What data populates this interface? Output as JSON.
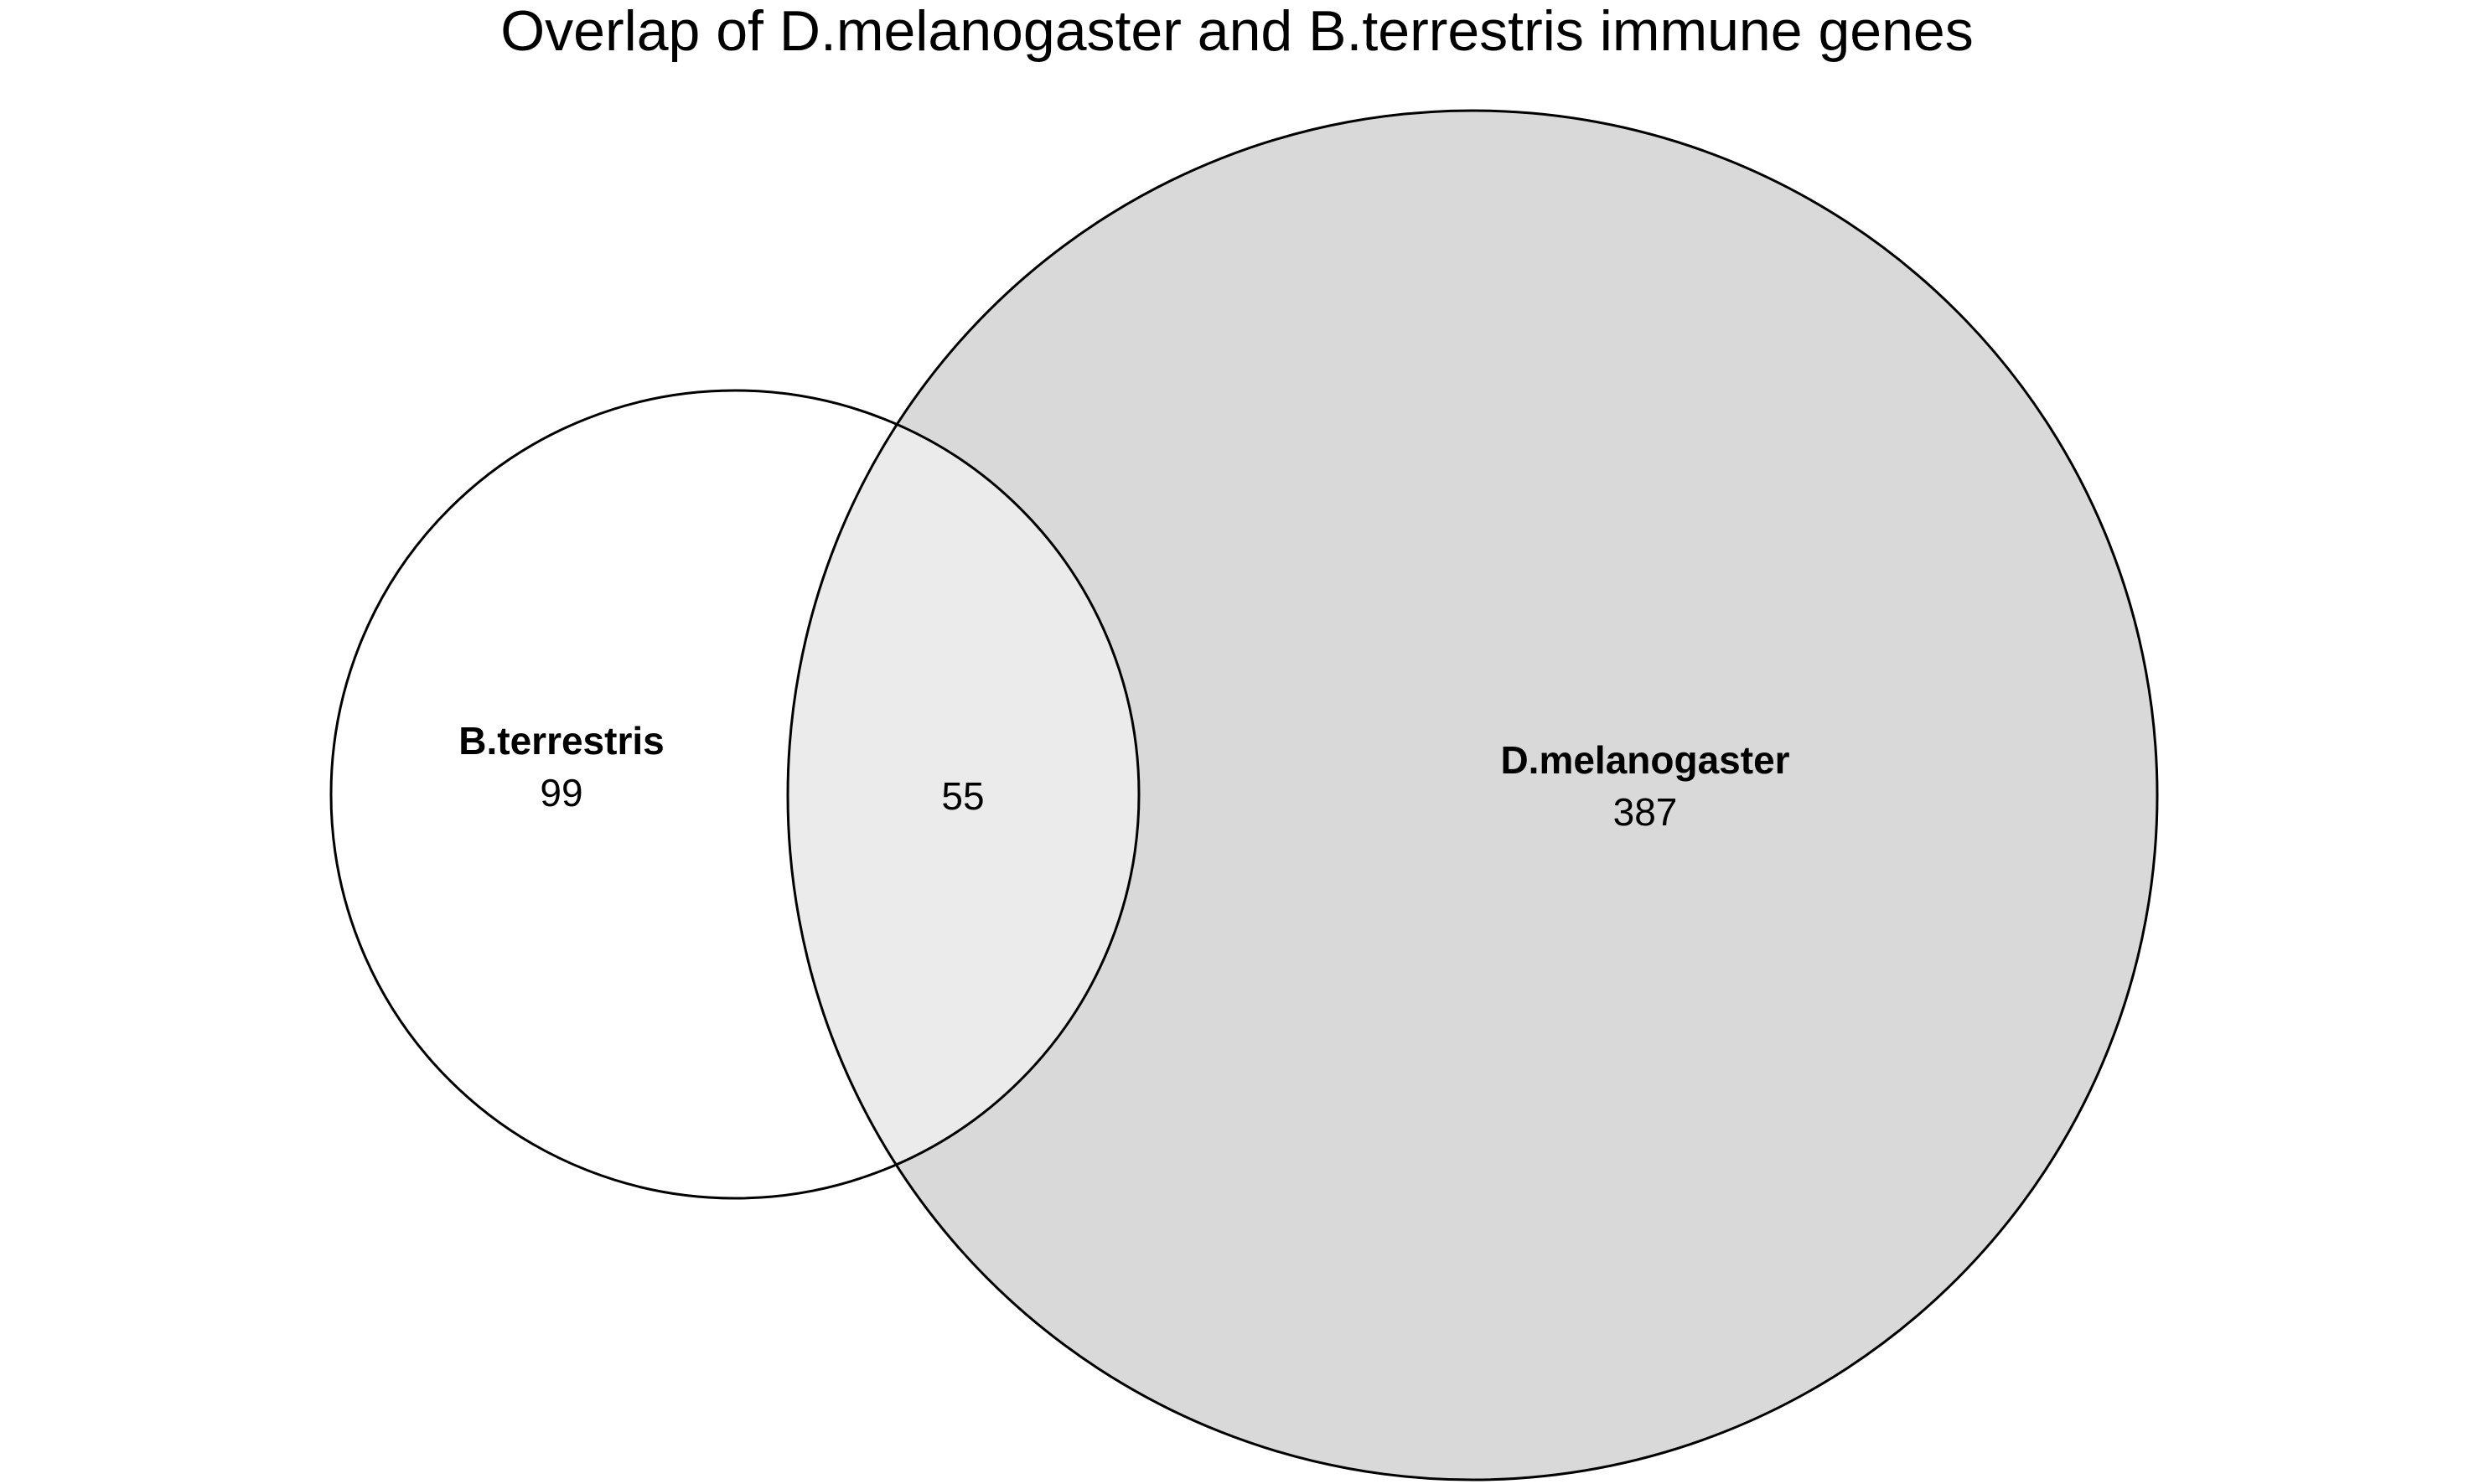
{
  "title": "Overlap of D.melanogaster and B.terrestris immune genes",
  "sets": [
    {
      "name": "B.terrestris",
      "only_count": "99",
      "fill": "#ffffff"
    },
    {
      "name": "D.melanogaster",
      "only_count": "387",
      "fill": "#d9d9d9"
    }
  ],
  "intersection": {
    "count": "55",
    "fill": "#ebebeb"
  },
  "outline_color": "#000000"
}
